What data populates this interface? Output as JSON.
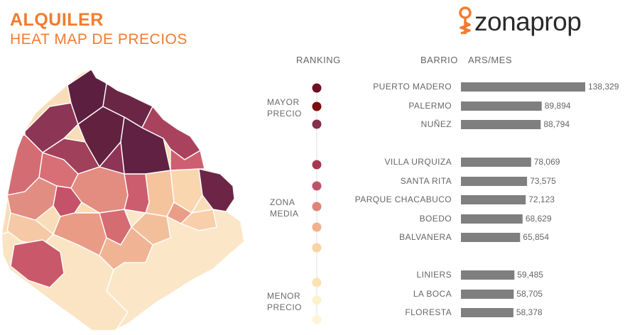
{
  "header": {
    "title": "ALQUILER",
    "subtitle": "HEAT MAP DE PRECIOS",
    "logo_text": "zonaprop"
  },
  "columns": {
    "ranking": "RANKING",
    "barrio": "BARRIO",
    "ars_mes": "ARS/MES"
  },
  "zones": {
    "mayor": [
      "MAYOR",
      "PRECIO"
    ],
    "media": [
      "ZONA",
      "MEDIA"
    ],
    "menor": [
      "MENOR",
      "PRECIO"
    ]
  },
  "colors": {
    "accent": "#f07c30",
    "bar": "#7f7f7f",
    "ranking_dots": [
      "#6e0f22",
      "#7d0d10",
      "#86304c",
      "#a53a4e",
      "#bd5466",
      "#e08379",
      "#f2b08e",
      "#f8d3a5",
      "#fbe2b2",
      "#fdf1cc",
      "#fdf5d8"
    ]
  },
  "chart_data": {
    "type": "bar",
    "orientation": "horizontal",
    "categories": [
      "PUERTO MADERO",
      "PALERMO",
      "NUÑEZ",
      "VILLA URQUIZA",
      "SANTA RITA",
      "PARQUE CHACABUCO",
      "BOEDO",
      "BALVANERA",
      "LINIERS",
      "LA BOCA",
      "FLORESTA"
    ],
    "values": [
      138329,
      89894,
      88794,
      78069,
      73575,
      72123,
      68629,
      65854,
      59485,
      58705,
      58378
    ],
    "value_labels": [
      "138,329",
      "89,894",
      "88,794",
      "78,069",
      "73,575",
      "72,123",
      "68,629",
      "65,854",
      "59,485",
      "58,705",
      "58,378"
    ],
    "groups": [
      {
        "zone": "mayor",
        "start": 0,
        "end": 2
      },
      {
        "zone": "media",
        "start": 3,
        "end": 7
      },
      {
        "zone": "menor",
        "start": 8,
        "end": 10
      }
    ],
    "xlim": [
      0,
      138329
    ],
    "grid": false,
    "legend": "none"
  }
}
